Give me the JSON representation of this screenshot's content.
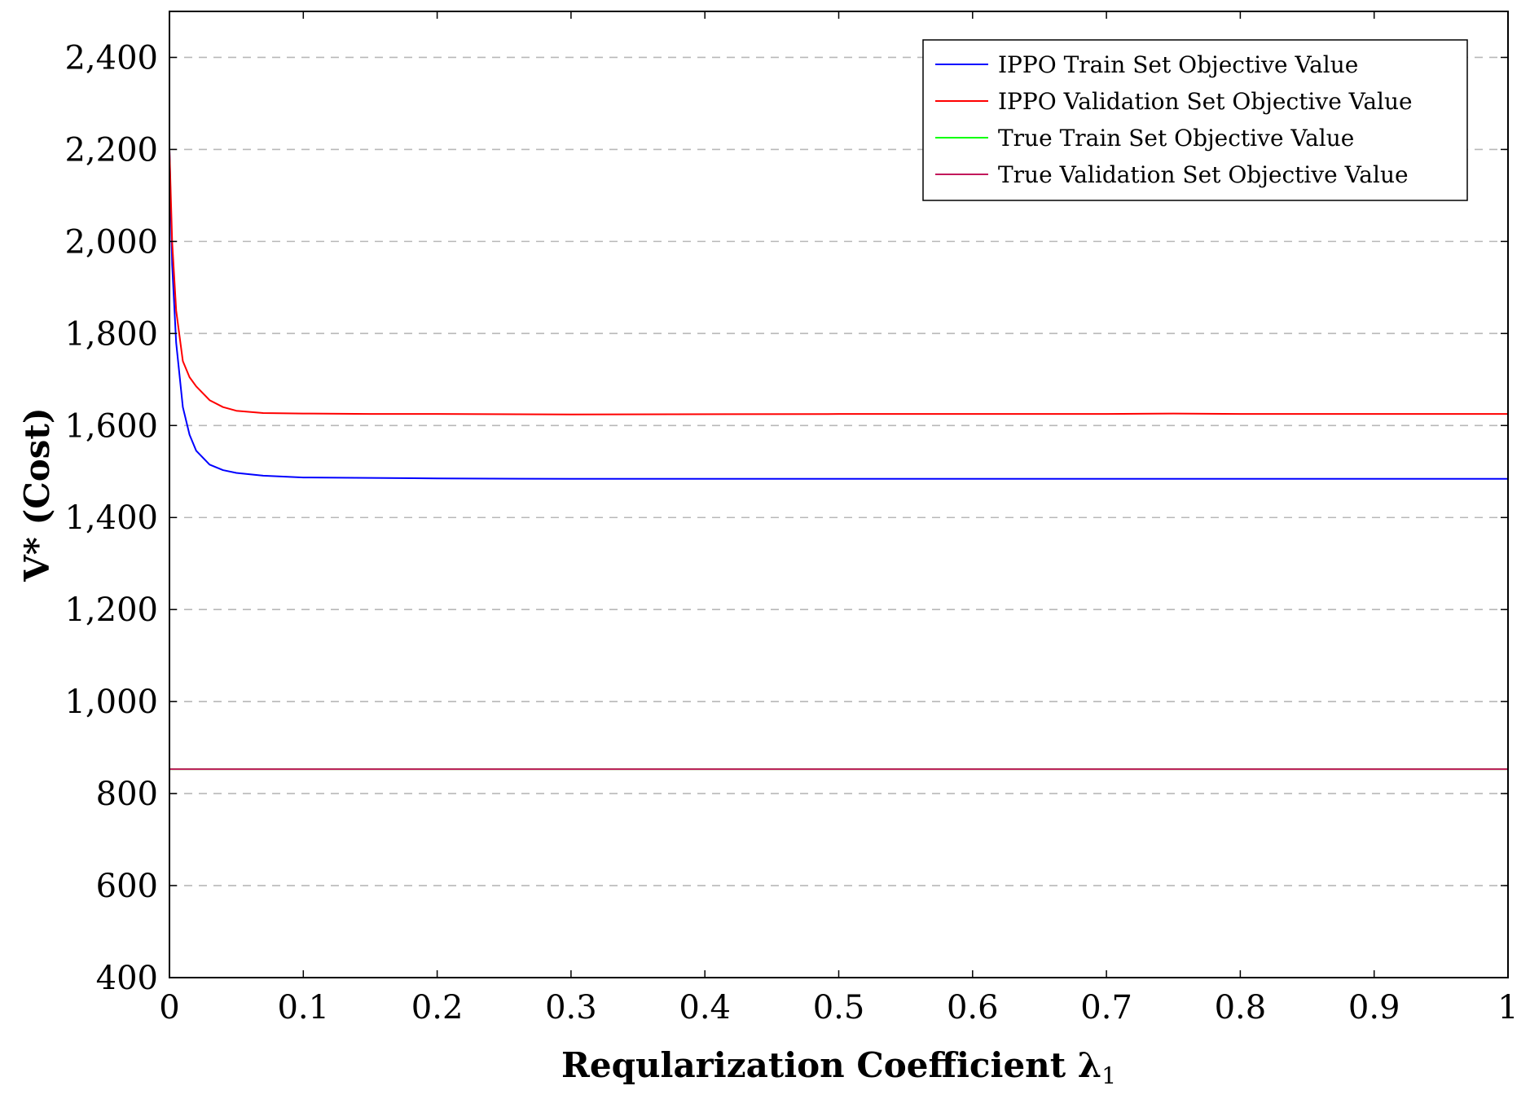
{
  "chart_data": {
    "type": "line",
    "title": "",
    "xlabel": "Reqularization Coefficient λ",
    "xlabel_subscript": "1",
    "ylabel": "V* (Cost)",
    "xlim": [
      0,
      1
    ],
    "ylim": [
      400,
      2500
    ],
    "xticks": [
      0,
      0.1,
      0.2,
      0.3,
      0.4,
      0.5,
      0.6,
      0.7,
      0.8,
      0.9,
      1
    ],
    "xtick_labels": [
      "0",
      "0.1",
      "0.2",
      "0.3",
      "0.4",
      "0.5",
      "0.6",
      "0.7",
      "0.8",
      "0.9",
      "1"
    ],
    "yticks": [
      400,
      600,
      800,
      1000,
      1200,
      1400,
      1600,
      1800,
      2000,
      2200,
      2400
    ],
    "ytick_labels": [
      "400",
      "600",
      "800",
      "1,000",
      "1,200",
      "1,400",
      "1,600",
      "1,800",
      "2,000",
      "2,200",
      "2,400"
    ],
    "grid": "horizontal dashed",
    "legend_position": "top-right",
    "series": [
      {
        "name": "IPPO Train Set Objective Value",
        "color": "#0000ff",
        "x": [
          0,
          0.002,
          0.005,
          0.01,
          0.015,
          0.02,
          0.03,
          0.04,
          0.05,
          0.07,
          0.1,
          0.15,
          0.2,
          0.3,
          0.5,
          0.7,
          1.0
        ],
        "y": [
          2200,
          1950,
          1780,
          1640,
          1580,
          1545,
          1515,
          1503,
          1497,
          1491,
          1487,
          1486,
          1485,
          1484,
          1484,
          1484,
          1484
        ]
      },
      {
        "name": "IPPO Validation Set Objective Value",
        "color": "#ff0000",
        "x": [
          0,
          0.002,
          0.005,
          0.01,
          0.015,
          0.02,
          0.03,
          0.04,
          0.05,
          0.07,
          0.1,
          0.15,
          0.2,
          0.3,
          0.5,
          0.7,
          0.75,
          0.8,
          1.0
        ],
        "y": [
          2200,
          2000,
          1850,
          1740,
          1705,
          1685,
          1655,
          1640,
          1632,
          1627,
          1626,
          1625,
          1625,
          1624,
          1625,
          1625,
          1626,
          1625,
          1625
        ]
      },
      {
        "name": "True Train Set Objective Value",
        "color": "#00ff00",
        "x": [
          0,
          1
        ],
        "y": [
          853,
          853
        ]
      },
      {
        "name": "True Validation Set Objective Value",
        "color": "#c2185b",
        "x": [
          0,
          1
        ],
        "y": [
          853,
          853
        ]
      }
    ]
  }
}
